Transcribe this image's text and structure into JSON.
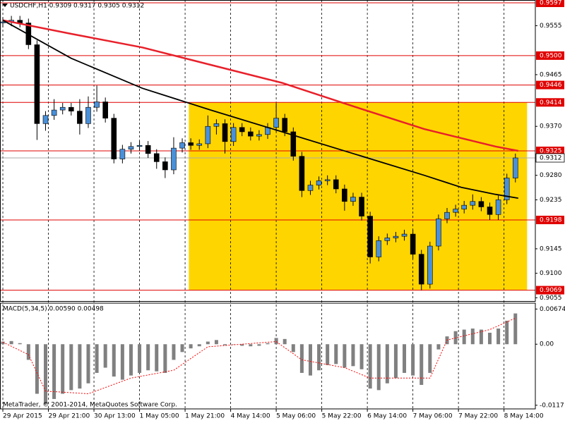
{
  "chart_data": {
    "type": "candlestick",
    "title": "USDCHF,H1  0.9309 0.9317 0.9305 0.9312",
    "x": [
      0,
      3,
      6,
      9,
      12,
      15,
      18,
      21,
      24,
      27,
      30,
      33,
      36,
      39,
      42,
      45,
      48,
      51,
      54,
      57,
      60,
      63,
      66,
      69,
      72,
      75,
      78,
      81,
      84,
      87,
      90,
      93,
      96,
      99,
      102,
      105,
      108,
      111,
      114,
      117,
      120,
      123,
      126,
      129,
      132,
      135,
      138,
      141,
      144,
      147,
      150,
      153,
      156,
      159,
      162,
      165,
      168,
      171,
      174,
      177,
      180
    ],
    "open": [
      0.956,
      0.9562,
      0.9565,
      0.956,
      0.952,
      0.9375,
      0.939,
      0.94,
      0.9405,
      0.9398,
      0.9375,
      0.9405,
      0.9415,
      0.9385,
      0.931,
      0.9328,
      0.9333,
      0.9335,
      0.932,
      0.9305,
      0.929,
      0.933,
      0.934,
      0.9335,
      0.9338,
      0.937,
      0.9375,
      0.9342,
      0.9368,
      0.936,
      0.9352,
      0.9355,
      0.9368,
      0.9385,
      0.936,
      0.9315,
      0.9252,
      0.9262,
      0.927,
      0.9272,
      0.9255,
      0.9232,
      0.924,
      0.9205,
      0.913,
      0.916,
      0.9165,
      0.9168,
      0.9172,
      0.9135,
      0.908,
      0.915,
      0.92,
      0.9212,
      0.9218,
      0.9225,
      0.9232,
      0.9222,
      0.9208,
      0.9235,
      0.9275
    ],
    "high": [
      0.957,
      0.9573,
      0.9573,
      0.9568,
      0.9528,
      0.9398,
      0.942,
      0.9413,
      0.9413,
      0.942,
      0.9425,
      0.9445,
      0.9423,
      0.9393,
      0.9336,
      0.9341,
      0.9343,
      0.9343,
      0.9328,
      0.9313,
      0.935,
      0.9348,
      0.9348,
      0.9346,
      0.939,
      0.9383,
      0.9383,
      0.9376,
      0.9376,
      0.9368,
      0.9363,
      0.9376,
      0.9412,
      0.9393,
      0.9368,
      0.9323,
      0.927,
      0.9278,
      0.928,
      0.928,
      0.9263,
      0.9248,
      0.9248,
      0.9213,
      0.9168,
      0.9173,
      0.9176,
      0.918,
      0.918,
      0.9143,
      0.9158,
      0.9208,
      0.922,
      0.9226,
      0.9233,
      0.9245,
      0.924,
      0.923,
      0.9243,
      0.9283,
      0.932
    ],
    "low": [
      0.9552,
      0.9554,
      0.9552,
      0.9512,
      0.9345,
      0.9362,
      0.9382,
      0.9392,
      0.939,
      0.9355,
      0.9367,
      0.9397,
      0.9377,
      0.9302,
      0.9302,
      0.932,
      0.9325,
      0.9312,
      0.9292,
      0.9275,
      0.9282,
      0.9322,
      0.9327,
      0.9327,
      0.933,
      0.9355,
      0.932,
      0.9334,
      0.9352,
      0.9344,
      0.9344,
      0.9347,
      0.936,
      0.9352,
      0.9307,
      0.924,
      0.9244,
      0.9254,
      0.9262,
      0.9247,
      0.9215,
      0.9224,
      0.9197,
      0.9118,
      0.9122,
      0.9152,
      0.9157,
      0.916,
      0.9127,
      0.9069,
      0.9072,
      0.9142,
      0.9192,
      0.9204,
      0.921,
      0.9217,
      0.9214,
      0.9198,
      0.9198,
      0.9227,
      0.9267
    ],
    "close": [
      0.9562,
      0.9565,
      0.956,
      0.952,
      0.9375,
      0.939,
      0.94,
      0.9405,
      0.9398,
      0.9375,
      0.9405,
      0.9415,
      0.9385,
      0.931,
      0.9328,
      0.9333,
      0.9335,
      0.932,
      0.9305,
      0.929,
      0.933,
      0.934,
      0.9335,
      0.9338,
      0.937,
      0.9375,
      0.9342,
      0.9368,
      0.936,
      0.9352,
      0.9355,
      0.9368,
      0.9385,
      0.936,
      0.9315,
      0.9252,
      0.9262,
      0.927,
      0.9272,
      0.9255,
      0.9232,
      0.924,
      0.9205,
      0.913,
      0.916,
      0.9165,
      0.9168,
      0.9172,
      0.9135,
      0.908,
      0.915,
      0.92,
      0.9212,
      0.9218,
      0.9225,
      0.9232,
      0.9222,
      0.9208,
      0.9235,
      0.9275,
      0.9312
    ],
    "up_color": "#4a90d9",
    "down_color": "#000000",
    "xlim": [
      -1,
      187
    ],
    "xticks": [
      {
        "value": 0,
        "label": "29 Apr 2015"
      },
      {
        "value": 16,
        "label": "29 Apr 21:00"
      },
      {
        "value": 32,
        "label": "30 Apr 13:00"
      },
      {
        "value": 48,
        "label": "1 May 05:00"
      },
      {
        "value": 64,
        "label": "1 May 21:00"
      },
      {
        "value": 80,
        "label": "4 May 14:00"
      },
      {
        "value": 96,
        "label": "5 May 06:00"
      },
      {
        "value": 112,
        "label": "5 May 22:00"
      },
      {
        "value": 128,
        "label": "6 May 14:00"
      },
      {
        "value": 144,
        "label": "7 May 06:00"
      },
      {
        "value": 160,
        "label": "7 May 22:00"
      },
      {
        "value": 176,
        "label": "8 May 14:00"
      }
    ],
    "ylim": [
      0.9049,
      0.96022
    ],
    "yticks": [
      0.9555,
      0.9465,
      {
        "value": 0.937,
        "label": "0.9370"
      },
      {
        "value": 0.928,
        "label": "0.9280"
      },
      0.9235,
      0.9145,
      {
        "value": 0.91,
        "label": "0.9100"
      },
      0.9055
    ],
    "levels": {
      "color": "#e00000",
      "values": [
        0.9597,
        {
          "value": 0.95,
          "label": "0.9500"
        },
        0.9446,
        0.9414,
        0.9325,
        0.9198,
        0.9069
      ]
    },
    "current_price": 0.9312,
    "zone": {
      "color": "#ffd500",
      "x": [
        65.3,
        184.1
      ],
      "y": [
        0.9069,
        0.9414
      ]
    },
    "moving_averages": [
      {
        "color": "#e8202a",
        "x": [
          0,
          24,
          49,
          73,
          98,
          123,
          148,
          173,
          181
        ],
        "values": [
          0.9565,
          0.954,
          0.9515,
          0.9483,
          0.945,
          0.9407,
          0.9365,
          0.9333,
          0.9325
        ]
      },
      {
        "color": "#000000",
        "x": [
          0,
          12,
          24,
          49,
          73,
          98,
          123,
          148,
          161,
          173,
          181
        ],
        "values": [
          0.9565,
          0.953,
          0.9495,
          0.944,
          0.94,
          0.936,
          0.932,
          0.928,
          0.9258,
          0.9245,
          0.9238
        ]
      }
    ],
    "macd": {
      "title": "MACD(5,34,5) 0.00590 0.00498",
      "ylim": [
        -0.0124,
        0.0076
      ],
      "yticks": [
        0.00674,
        {
          "value": 0,
          "label": "0.00"
        },
        -0.0117
      ],
      "color": "#808080",
      "values": [
        0.0005,
        0.0006,
        0.0002,
        -0.003,
        -0.0095,
        -0.0115,
        -0.0105,
        -0.0095,
        -0.0088,
        -0.0085,
        -0.0075,
        -0.0055,
        -0.0045,
        -0.0062,
        -0.0068,
        -0.006,
        -0.0055,
        -0.005,
        -0.0052,
        -0.0055,
        -0.003,
        -0.0015,
        -0.0008,
        -0.0004,
        0.0005,
        0.0008,
        -0.0002,
        0,
        -0.0003,
        -0.0004,
        -0.0003,
        0.0002,
        0.0012,
        0.001,
        -0.0015,
        -0.0055,
        -0.006,
        -0.005,
        -0.004,
        -0.0038,
        -0.0045,
        -0.0042,
        -0.0048,
        -0.0085,
        -0.0088,
        -0.0075,
        -0.0065,
        -0.0055,
        -0.006,
        -0.0078,
        -0.0055,
        -0.001,
        0.0015,
        0.0025,
        0.0028,
        0.003,
        0.0028,
        0.0022,
        0.003,
        0.0045,
        0.0059
      ],
      "signal": {
        "color": "#ff0000",
        "x": [
          0,
          9,
          15,
          30,
          45,
          60,
          72,
          96,
          105,
          120,
          129,
          150,
          156,
          171,
          180
        ],
        "values": [
          0.0004,
          -0.002,
          -0.009,
          -0.0095,
          -0.0065,
          -0.005,
          -0.0005,
          0.0005,
          -0.003,
          -0.0045,
          -0.0065,
          -0.0065,
          0.0008,
          0.0028,
          0.005
        ]
      }
    },
    "footer": "MetaTrader, © 2001-2014, MetaQuotes Software Corp."
  }
}
